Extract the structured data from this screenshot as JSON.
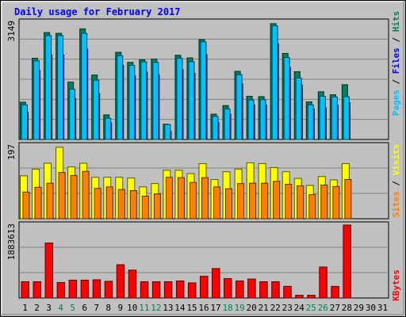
{
  "chart_data": {
    "type": "bar",
    "title": "Daily usage for February 2017",
    "x": [
      "1",
      "2",
      "3",
      "4",
      "5",
      "6",
      "7",
      "8",
      "9",
      "10",
      "11",
      "12",
      "13",
      "14",
      "15",
      "16",
      "17",
      "18",
      "19",
      "20",
      "21",
      "22",
      "23",
      "24",
      "25",
      "26",
      "27",
      "28",
      "29",
      "30",
      "31"
    ],
    "weekend_days": [
      "4",
      "5",
      "11",
      "12",
      "18",
      "19",
      "25",
      "26"
    ],
    "panels": [
      {
        "id": "top",
        "ymax_label": "3149",
        "ylim": [
          0,
          3149
        ],
        "series": [
          {
            "name": "Hits",
            "color": "#00805c",
            "values": [
              1000,
              2180,
              2870,
              2850,
              1540,
              2970,
              1730,
              660,
              2340,
              2070,
              2140,
              2160,
              410,
              2260,
              2190,
              2680,
              680,
              910,
              1830,
              1160,
              1150,
              3110,
              2310,
              1820,
              1010,
              1280,
              1200,
              1470,
              0,
              0,
              0
            ]
          },
          {
            "name": "Files",
            "color": "#0000ff",
            "values": [
              730,
              1850,
              2270,
              2270,
              1100,
              2420,
              1230,
              450,
              1990,
              1710,
              1810,
              1740,
              220,
              1880,
              1780,
              2280,
              460,
              680,
              1490,
              930,
              930,
              2570,
              1940,
              1460,
              820,
              850,
              920,
              990,
              0,
              0,
              0
            ]
          },
          {
            "name": "Pages",
            "color": "#00c0ff",
            "values": [
              930,
              2110,
              2790,
              2790,
              1350,
              2850,
              1590,
              570,
              2250,
              1990,
              2080,
              2070,
              400,
              2180,
              2090,
              2620,
              620,
              820,
              1740,
              1060,
              1070,
              3050,
              2200,
              1650,
              930,
              1160,
              1140,
              1150,
              0,
              0,
              0
            ]
          }
        ]
      },
      {
        "id": "middle",
        "ymax_label": "197",
        "ylim": [
          0,
          197
        ],
        "series": [
          {
            "name": "Visits",
            "color": "#ffff00",
            "values": [
              116,
              134,
              150,
              193,
              140,
              150,
              112,
              112,
              112,
              110,
              86,
              95,
              131,
              131,
              122,
              149,
              106,
              127,
              134,
              151,
              149,
              138,
              127,
              109,
              90,
              114,
              105,
              149,
              0,
              0,
              0
            ]
          },
          {
            "name": "Sites",
            "color": "#ff8000",
            "values": [
              72,
              85,
              96,
              125,
              117,
              128,
              82,
              86,
              79,
              76,
              61,
              67,
              112,
              111,
              98,
              111,
              86,
              81,
              95,
              96,
              96,
              101,
              93,
              89,
              65,
              91,
              87,
              106,
              0,
              0,
              0
            ]
          }
        ]
      },
      {
        "id": "bottom",
        "ymax_label": "1883613",
        "ylim": [
          0,
          1883613
        ],
        "series": [
          {
            "name": "KBytes",
            "color": "#ff0000",
            "values": [
              420000,
              420000,
              1420000,
              400000,
              460000,
              460000,
              470000,
              430000,
              860000,
              720000,
              420000,
              420000,
              420000,
              440000,
              390000,
              560000,
              760000,
              500000,
              440000,
              490000,
              420000,
              420000,
              300000,
              70000,
              70000,
              800000,
              300000,
              1883613,
              0,
              0,
              0
            ]
          }
        ]
      }
    ],
    "right_label_top": [
      "Pages",
      "Files",
      "Hits"
    ],
    "right_label_middle": [
      "Sites",
      "Visits"
    ],
    "right_label_bottom": [
      "KBytes"
    ],
    "separator": "/",
    "colors": {
      "frame": "#c0c0c0",
      "plot_bg": "#c0c0c0",
      "grid": "#808080",
      "title": "#0000ff",
      "day_weekday": "#000000",
      "day_weekend": "#00805c",
      "separator": "#000000"
    }
  }
}
